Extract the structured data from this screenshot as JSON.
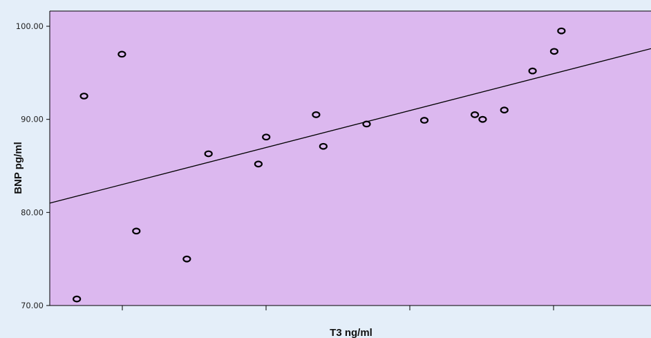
{
  "chart_data": {
    "type": "scatter",
    "title": "",
    "xlabel": "T3 ng/ml",
    "ylabel": "BNP pg/ml",
    "xlim": [
      0,
      1
    ],
    "ylim": [
      70,
      100
    ],
    "y_ticks": [
      "70.00",
      "80.00",
      "90.00",
      "100.00"
    ],
    "x_ticks": [
      "",
      "",
      "",
      ""
    ],
    "grid": false,
    "legend": "none",
    "colors": {
      "plot_bg": "#dcb8ef",
      "page_bg": "#e4eef9",
      "marker": "#000000",
      "line": "#000000"
    },
    "points": [
      {
        "x": 0.045,
        "y": 70.7
      },
      {
        "x": 0.057,
        "y": 92.5
      },
      {
        "x": 0.12,
        "y": 97.0
      },
      {
        "x": 0.144,
        "y": 78.0
      },
      {
        "x": 0.228,
        "y": 75.0
      },
      {
        "x": 0.264,
        "y": 86.3
      },
      {
        "x": 0.347,
        "y": 85.2
      },
      {
        "x": 0.36,
        "y": 88.1
      },
      {
        "x": 0.443,
        "y": 90.5
      },
      {
        "x": 0.455,
        "y": 87.1
      },
      {
        "x": 0.527,
        "y": 89.5
      },
      {
        "x": 0.623,
        "y": 89.9
      },
      {
        "x": 0.707,
        "y": 90.5
      },
      {
        "x": 0.72,
        "y": 90.0
      },
      {
        "x": 0.756,
        "y": 91.0
      },
      {
        "x": 0.803,
        "y": 95.2
      },
      {
        "x": 0.839,
        "y": 97.3
      },
      {
        "x": 0.851,
        "y": 99.5
      }
    ],
    "fit_line": {
      "x": [
        0,
        1
      ],
      "y": [
        81.0,
        97.6
      ]
    }
  }
}
